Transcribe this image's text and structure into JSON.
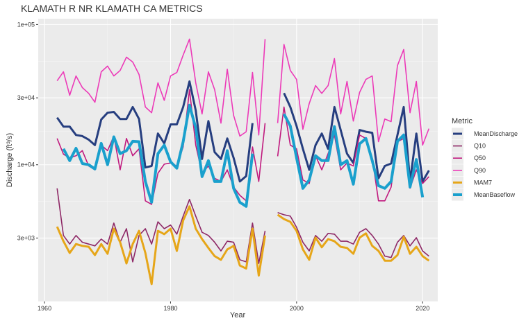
{
  "chart_data": {
    "type": "line",
    "title": "KLAMATH R NR KLAMATH CA  METRICS",
    "x_label": "Year",
    "y_label": "Discharge (ft³/s)",
    "legend_title": "Metric",
    "legend": "right",
    "y_log": true,
    "grid": true,
    "xlim": [
      1959,
      2022.4
    ],
    "xticks": [
      1960,
      1980,
      2000,
      2020
    ],
    "ylim": [
      1060,
      110000
    ],
    "yticks": [
      {
        "value": 3000,
        "label": "3e+03"
      },
      {
        "value": 10000,
        "label": "1e+04"
      },
      {
        "value": 30000,
        "label": "3e+04"
      },
      {
        "value": 100000,
        "label": "1e+05"
      }
    ],
    "x": [
      1962,
      1963,
      1964,
      1965,
      1966,
      1967,
      1968,
      1969,
      1970,
      1971,
      1972,
      1973,
      1974,
      1975,
      1976,
      1977,
      1978,
      1979,
      1980,
      1981,
      1982,
      1983,
      1984,
      1985,
      1986,
      1987,
      1988,
      1989,
      1990,
      1991,
      1992,
      1993,
      1994,
      1995,
      1996,
      1997,
      1998,
      1999,
      2000,
      2001,
      2002,
      2003,
      2004,
      2005,
      2006,
      2007,
      2008,
      2009,
      2010,
      2011,
      2012,
      2013,
      2014,
      2015,
      2016,
      2017,
      2018,
      2019,
      2020,
      2021
    ],
    "series": [
      {
        "name": "MeanDischarge",
        "color": "#263e7f",
        "width": 3,
        "values": [
          21700,
          18700,
          18700,
          16300,
          16000,
          15100,
          13800,
          21000,
          23500,
          23800,
          21200,
          21200,
          25800,
          21200,
          9560,
          9800,
          16700,
          14200,
          19400,
          19400,
          25800,
          39300,
          24400,
          11000,
          20500,
          12300,
          11000,
          15400,
          11200,
          7600,
          8300,
          19800,
          null,
          null,
          null,
          null,
          32400,
          25800,
          18900,
          13000,
          9200,
          13800,
          16700,
          13000,
          25800,
          17700,
          12000,
          10300,
          17700,
          17200,
          16900,
          8000,
          9800,
          10200,
          16300,
          25800,
          7600,
          16700,
          7600,
          9100
        ]
      },
      {
        "name": "Q10",
        "color": "#8e2866",
        "width": 1.6,
        "values": [
          6790,
          3130,
          2720,
          3130,
          2800,
          2720,
          2640,
          2950,
          2720,
          3840,
          2800,
          3500,
          2030,
          3130,
          3500,
          2720,
          3920,
          3500,
          3720,
          3200,
          4300,
          5660,
          4300,
          3300,
          3130,
          2800,
          2430,
          2850,
          2800,
          2100,
          2030,
          3840,
          1980,
          3380,
          null,
          4560,
          4400,
          4300,
          3580,
          2800,
          2430,
          3130,
          2850,
          3240,
          3200,
          2850,
          2850,
          2720,
          3300,
          3500,
          3130,
          2720,
          2230,
          2180,
          2800,
          3130,
          2640,
          3020,
          2430,
          2230
        ]
      },
      {
        "name": "Q50",
        "color": "#c0197e",
        "width": 1.6,
        "values": [
          15400,
          11900,
          11200,
          11600,
          12600,
          9800,
          9200,
          13800,
          12600,
          16000,
          9200,
          15400,
          11600,
          13000,
          5530,
          5220,
          8700,
          10100,
          10300,
          9800,
          13400,
          34300,
          13800,
          8700,
          9800,
          8000,
          7600,
          9200,
          6940,
          6050,
          5530,
          13400,
          7600,
          19800,
          null,
          11500,
          25800,
          13800,
          13000,
          7800,
          7350,
          11600,
          9200,
          12000,
          16300,
          9200,
          10300,
          9800,
          16300,
          15400,
          11200,
          5530,
          5530,
          6940,
          14600,
          15400,
          6800,
          9200,
          7350,
          8230
        ]
      },
      {
        "name": "Q90",
        "color": "#ec3ab8",
        "width": 1.6,
        "values": [
          39700,
          46000,
          31300,
          43000,
          35500,
          32300,
          27900,
          46000,
          50500,
          43000,
          47000,
          58500,
          54000,
          44000,
          25800,
          23500,
          38400,
          28800,
          43000,
          45500,
          60500,
          78700,
          38400,
          23000,
          46000,
          34300,
          19800,
          48000,
          22500,
          16000,
          17200,
          45500,
          16300,
          78700,
          null,
          19800,
          72000,
          47000,
          40600,
          17900,
          27300,
          36700,
          32300,
          36700,
          57200,
          23000,
          39300,
          20500,
          32800,
          40600,
          43000,
          14600,
          21200,
          20300,
          51000,
          66400,
          23500,
          39300,
          13800,
          18100
        ]
      },
      {
        "name": "MAM7",
        "color": "#e6a619",
        "width": 3,
        "values": [
          3620,
          2850,
          2350,
          2720,
          2640,
          2600,
          2270,
          2720,
          2320,
          3500,
          2800,
          1980,
          2720,
          3380,
          2350,
          1410,
          3380,
          3200,
          3500,
          2430,
          4010,
          5050,
          3500,
          2950,
          2550,
          2230,
          2100,
          2490,
          2640,
          1910,
          1820,
          3500,
          1620,
          3130,
          null,
          4400,
          4100,
          3920,
          3380,
          2490,
          2100,
          3020,
          2580,
          2950,
          2850,
          2600,
          2550,
          2320,
          3020,
          3240,
          2640,
          2430,
          2070,
          2070,
          2270,
          3060,
          2320,
          2600,
          2230,
          2070
        ]
      },
      {
        "name": "MeanBaseflow",
        "color": "#1aa0cd",
        "width": 4,
        "values": [
          null,
          13000,
          10700,
          13100,
          10200,
          10000,
          9330,
          14200,
          10000,
          15800,
          12000,
          12600,
          14700,
          14600,
          7600,
          5400,
          12000,
          13800,
          10500,
          9450,
          14600,
          26600,
          18300,
          8230,
          10700,
          7600,
          7600,
          12600,
          6790,
          5400,
          5050,
          12000,
          null,
          null,
          null,
          null,
          23000,
          18900,
          11200,
          6790,
          7780,
          11600,
          10700,
          10700,
          18700,
          10000,
          10700,
          7270,
          14100,
          15400,
          10700,
          7100,
          6790,
          7600,
          14700,
          16300,
          6940,
          10900,
          5860,
          null
        ]
      }
    ]
  }
}
